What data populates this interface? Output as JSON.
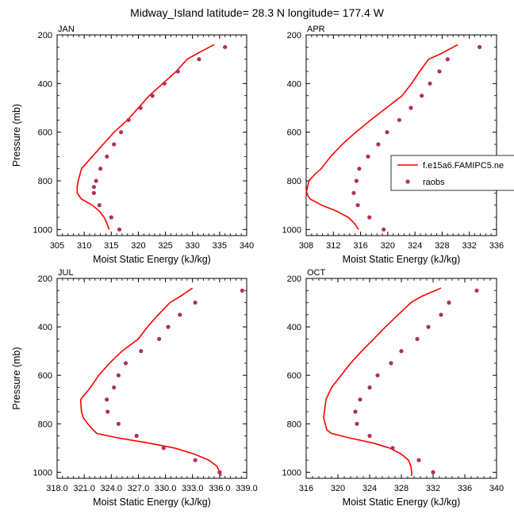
{
  "figure": {
    "title": "Midway_Island  latitude= 28.3 N longitude= 177.4 W"
  },
  "colors": {
    "model_line": "#ff0000",
    "raobs_marker": "#b03060",
    "axes": "#000000"
  },
  "legend": {
    "placement": "right of APR panel",
    "entries": [
      {
        "label": "f.e15a6.FAMIPC5.ne",
        "style": "line"
      },
      {
        "label": "raobs",
        "style": "marker"
      }
    ]
  },
  "chart_data": [
    {
      "type": "line",
      "panel": "JAN",
      "xlabel": "Moist Static Energy (kJ/kg)",
      "ylabel": "Pressure (mb)",
      "xlim": [
        305,
        340
      ],
      "ylim": [
        1025,
        200
      ],
      "xticks": [
        "305",
        "310",
        "315",
        "320",
        "325",
        "330",
        "335",
        "340"
      ],
      "yticks": [
        "200",
        "400",
        "600",
        "800",
        "1000"
      ],
      "series": [
        {
          "name": "f.e15a6.FAMIPC5.ne",
          "kind": "line",
          "points": [
            [
              334.0,
              240
            ],
            [
              331.0,
              275
            ],
            [
              329.0,
              300
            ],
            [
              327.0,
              350
            ],
            [
              324.5,
              400
            ],
            [
              322.0,
              450
            ],
            [
              320.0,
              500
            ],
            [
              318.0,
              550
            ],
            [
              315.5,
              600
            ],
            [
              313.5,
              650
            ],
            [
              311.5,
              700
            ],
            [
              309.5,
              750
            ],
            [
              309.2,
              775
            ],
            [
              308.9,
              800
            ],
            [
              308.7,
              825
            ],
            [
              308.7,
              850
            ],
            [
              309.5,
              875
            ],
            [
              311.5,
              900
            ],
            [
              312.8,
              925
            ],
            [
              313.7,
              950
            ],
            [
              314.2,
              975
            ],
            [
              314.6,
              1000
            ]
          ]
        },
        {
          "name": "raobs",
          "kind": "scatter",
          "points": [
            [
              336.0,
              250
            ],
            [
              331.2,
              300
            ],
            [
              327.3,
              350
            ],
            [
              324.8,
              400
            ],
            [
              322.6,
              450
            ],
            [
              320.4,
              500
            ],
            [
              318.2,
              550
            ],
            [
              316.8,
              600
            ],
            [
              315.5,
              650
            ],
            [
              314.2,
              700
            ],
            [
              313.0,
              750
            ],
            [
              312.2,
              800
            ],
            [
              311.8,
              825
            ],
            [
              311.8,
              850
            ],
            [
              312.8,
              900
            ],
            [
              315.0,
              950
            ],
            [
              316.5,
              1000
            ]
          ]
        }
      ]
    },
    {
      "type": "line",
      "panel": "APR",
      "xlabel": "Moist Static Energy (kJ/kg)",
      "ylabel": "",
      "xlim": [
        308,
        336
      ],
      "ylim": [
        1025,
        200
      ],
      "xticks": [
        "308",
        "312",
        "316",
        "320",
        "324",
        "328",
        "332",
        "336"
      ],
      "yticks": [
        "200",
        "400",
        "600",
        "800",
        "1000"
      ],
      "series": [
        {
          "name": "f.e15a6.FAMIPC5.ne",
          "kind": "line",
          "points": [
            [
              330.3,
              240
            ],
            [
              328.0,
              275
            ],
            [
              326.0,
              300
            ],
            [
              324.7,
              350
            ],
            [
              323.5,
              400
            ],
            [
              322.1,
              450
            ],
            [
              319.8,
              500
            ],
            [
              317.5,
              550
            ],
            [
              315.3,
              600
            ],
            [
              313.3,
              650
            ],
            [
              311.6,
              700
            ],
            [
              310.2,
              750
            ],
            [
              309.2,
              775
            ],
            [
              308.4,
              800
            ],
            [
              308.2,
              825
            ],
            [
              308.0,
              850
            ],
            [
              308.6,
              875
            ],
            [
              310.3,
              900
            ],
            [
              312.5,
              925
            ],
            [
              314.2,
              950
            ],
            [
              315.1,
              975
            ],
            [
              315.7,
              1000
            ]
          ]
        },
        {
          "name": "raobs",
          "kind": "scatter",
          "points": [
            [
              333.5,
              250
            ],
            [
              328.8,
              300
            ],
            [
              327.6,
              350
            ],
            [
              326.2,
              400
            ],
            [
              325.0,
              450
            ],
            [
              323.4,
              500
            ],
            [
              321.7,
              550
            ],
            [
              319.9,
              600
            ],
            [
              318.6,
              650
            ],
            [
              317.1,
              700
            ],
            [
              315.8,
              750
            ],
            [
              315.4,
              800
            ],
            [
              315.0,
              850
            ],
            [
              315.6,
              900
            ],
            [
              317.3,
              950
            ],
            [
              319.4,
              1000
            ]
          ]
        }
      ]
    },
    {
      "type": "line",
      "panel": "JUL",
      "xlabel": "Moist Static Energy (kJ/kg)",
      "ylabel": "Pressure (mb)",
      "xlim": [
        318.0,
        339.0
      ],
      "ylim": [
        1025,
        200
      ],
      "xticks": [
        "318.0",
        "321.0",
        "324.0",
        "327.0",
        "330.0",
        "333.0",
        "336.0",
        "339.0"
      ],
      "yticks": [
        "200",
        "400",
        "600",
        "800",
        "1000"
      ],
      "series": [
        {
          "name": "f.e15a6.FAMIPC5.ne",
          "kind": "line",
          "points": [
            [
              333.0,
              240
            ],
            [
              331.6,
              275
            ],
            [
              330.5,
              300
            ],
            [
              329.2,
              350
            ],
            [
              328.0,
              400
            ],
            [
              327.0,
              450
            ],
            [
              325.2,
              500
            ],
            [
              323.8,
              550
            ],
            [
              322.6,
              600
            ],
            [
              321.7,
              650
            ],
            [
              320.6,
              700
            ],
            [
              320.7,
              750
            ],
            [
              320.9,
              775
            ],
            [
              321.4,
              800
            ],
            [
              322.0,
              825
            ],
            [
              322.4,
              840
            ],
            [
              325.0,
              860
            ],
            [
              328.2,
              880
            ],
            [
              331.0,
              900
            ],
            [
              333.2,
              925
            ],
            [
              334.8,
              950
            ],
            [
              335.7,
              975
            ],
            [
              336.0,
              1000
            ],
            [
              336.2,
              1015
            ]
          ]
        },
        {
          "name": "raobs",
          "kind": "scatter",
          "points": [
            [
              338.5,
              250
            ],
            [
              333.3,
              300
            ],
            [
              331.6,
              350
            ],
            [
              330.3,
              400
            ],
            [
              329.3,
              450
            ],
            [
              327.3,
              500
            ],
            [
              325.6,
              550
            ],
            [
              324.8,
              600
            ],
            [
              324.3,
              650
            ],
            [
              323.5,
              700
            ],
            [
              323.6,
              750
            ],
            [
              324.8,
              800
            ],
            [
              326.8,
              850
            ],
            [
              329.8,
              900
            ],
            [
              333.3,
              950
            ],
            [
              336.0,
              1000
            ]
          ]
        }
      ]
    },
    {
      "type": "line",
      "panel": "OCT",
      "xlabel": "Moist Static Energy (kJ/kg)",
      "ylabel": "",
      "xlim": [
        316,
        340
      ],
      "ylim": [
        1025,
        200
      ],
      "xticks": [
        "316",
        "320",
        "324",
        "328",
        "332",
        "336",
        "340"
      ],
      "yticks": [
        "200",
        "400",
        "600",
        "800",
        "1000"
      ],
      "series": [
        {
          "name": "f.e15a6.FAMIPC5.ne",
          "kind": "line",
          "points": [
            [
              333.0,
              240
            ],
            [
              330.5,
              275
            ],
            [
              329.2,
              300
            ],
            [
              327.6,
              350
            ],
            [
              326.0,
              400
            ],
            [
              324.5,
              450
            ],
            [
              323.0,
              500
            ],
            [
              321.6,
              550
            ],
            [
              320.4,
              600
            ],
            [
              319.2,
              650
            ],
            [
              318.5,
              700
            ],
            [
              318.3,
              750
            ],
            [
              318.2,
              775
            ],
            [
              318.4,
              800
            ],
            [
              318.6,
              825
            ],
            [
              319.2,
              840
            ],
            [
              321.7,
              860
            ],
            [
              324.5,
              880
            ],
            [
              326.5,
              900
            ],
            [
              328.0,
              925
            ],
            [
              328.9,
              950
            ],
            [
              329.2,
              975
            ],
            [
              329.3,
              1000
            ],
            [
              329.3,
              1015
            ]
          ]
        },
        {
          "name": "raobs",
          "kind": "scatter",
          "points": [
            [
              337.5,
              250
            ],
            [
              334.0,
              300
            ],
            [
              333.0,
              350
            ],
            [
              331.4,
              400
            ],
            [
              330.0,
              450
            ],
            [
              328.0,
              500
            ],
            [
              326.7,
              550
            ],
            [
              325.0,
              600
            ],
            [
              324.0,
              650
            ],
            [
              322.8,
              700
            ],
            [
              322.2,
              750
            ],
            [
              322.4,
              800
            ],
            [
              324.0,
              850
            ],
            [
              326.9,
              900
            ],
            [
              330.2,
              950
            ],
            [
              332.0,
              1000
            ]
          ]
        }
      ]
    }
  ]
}
